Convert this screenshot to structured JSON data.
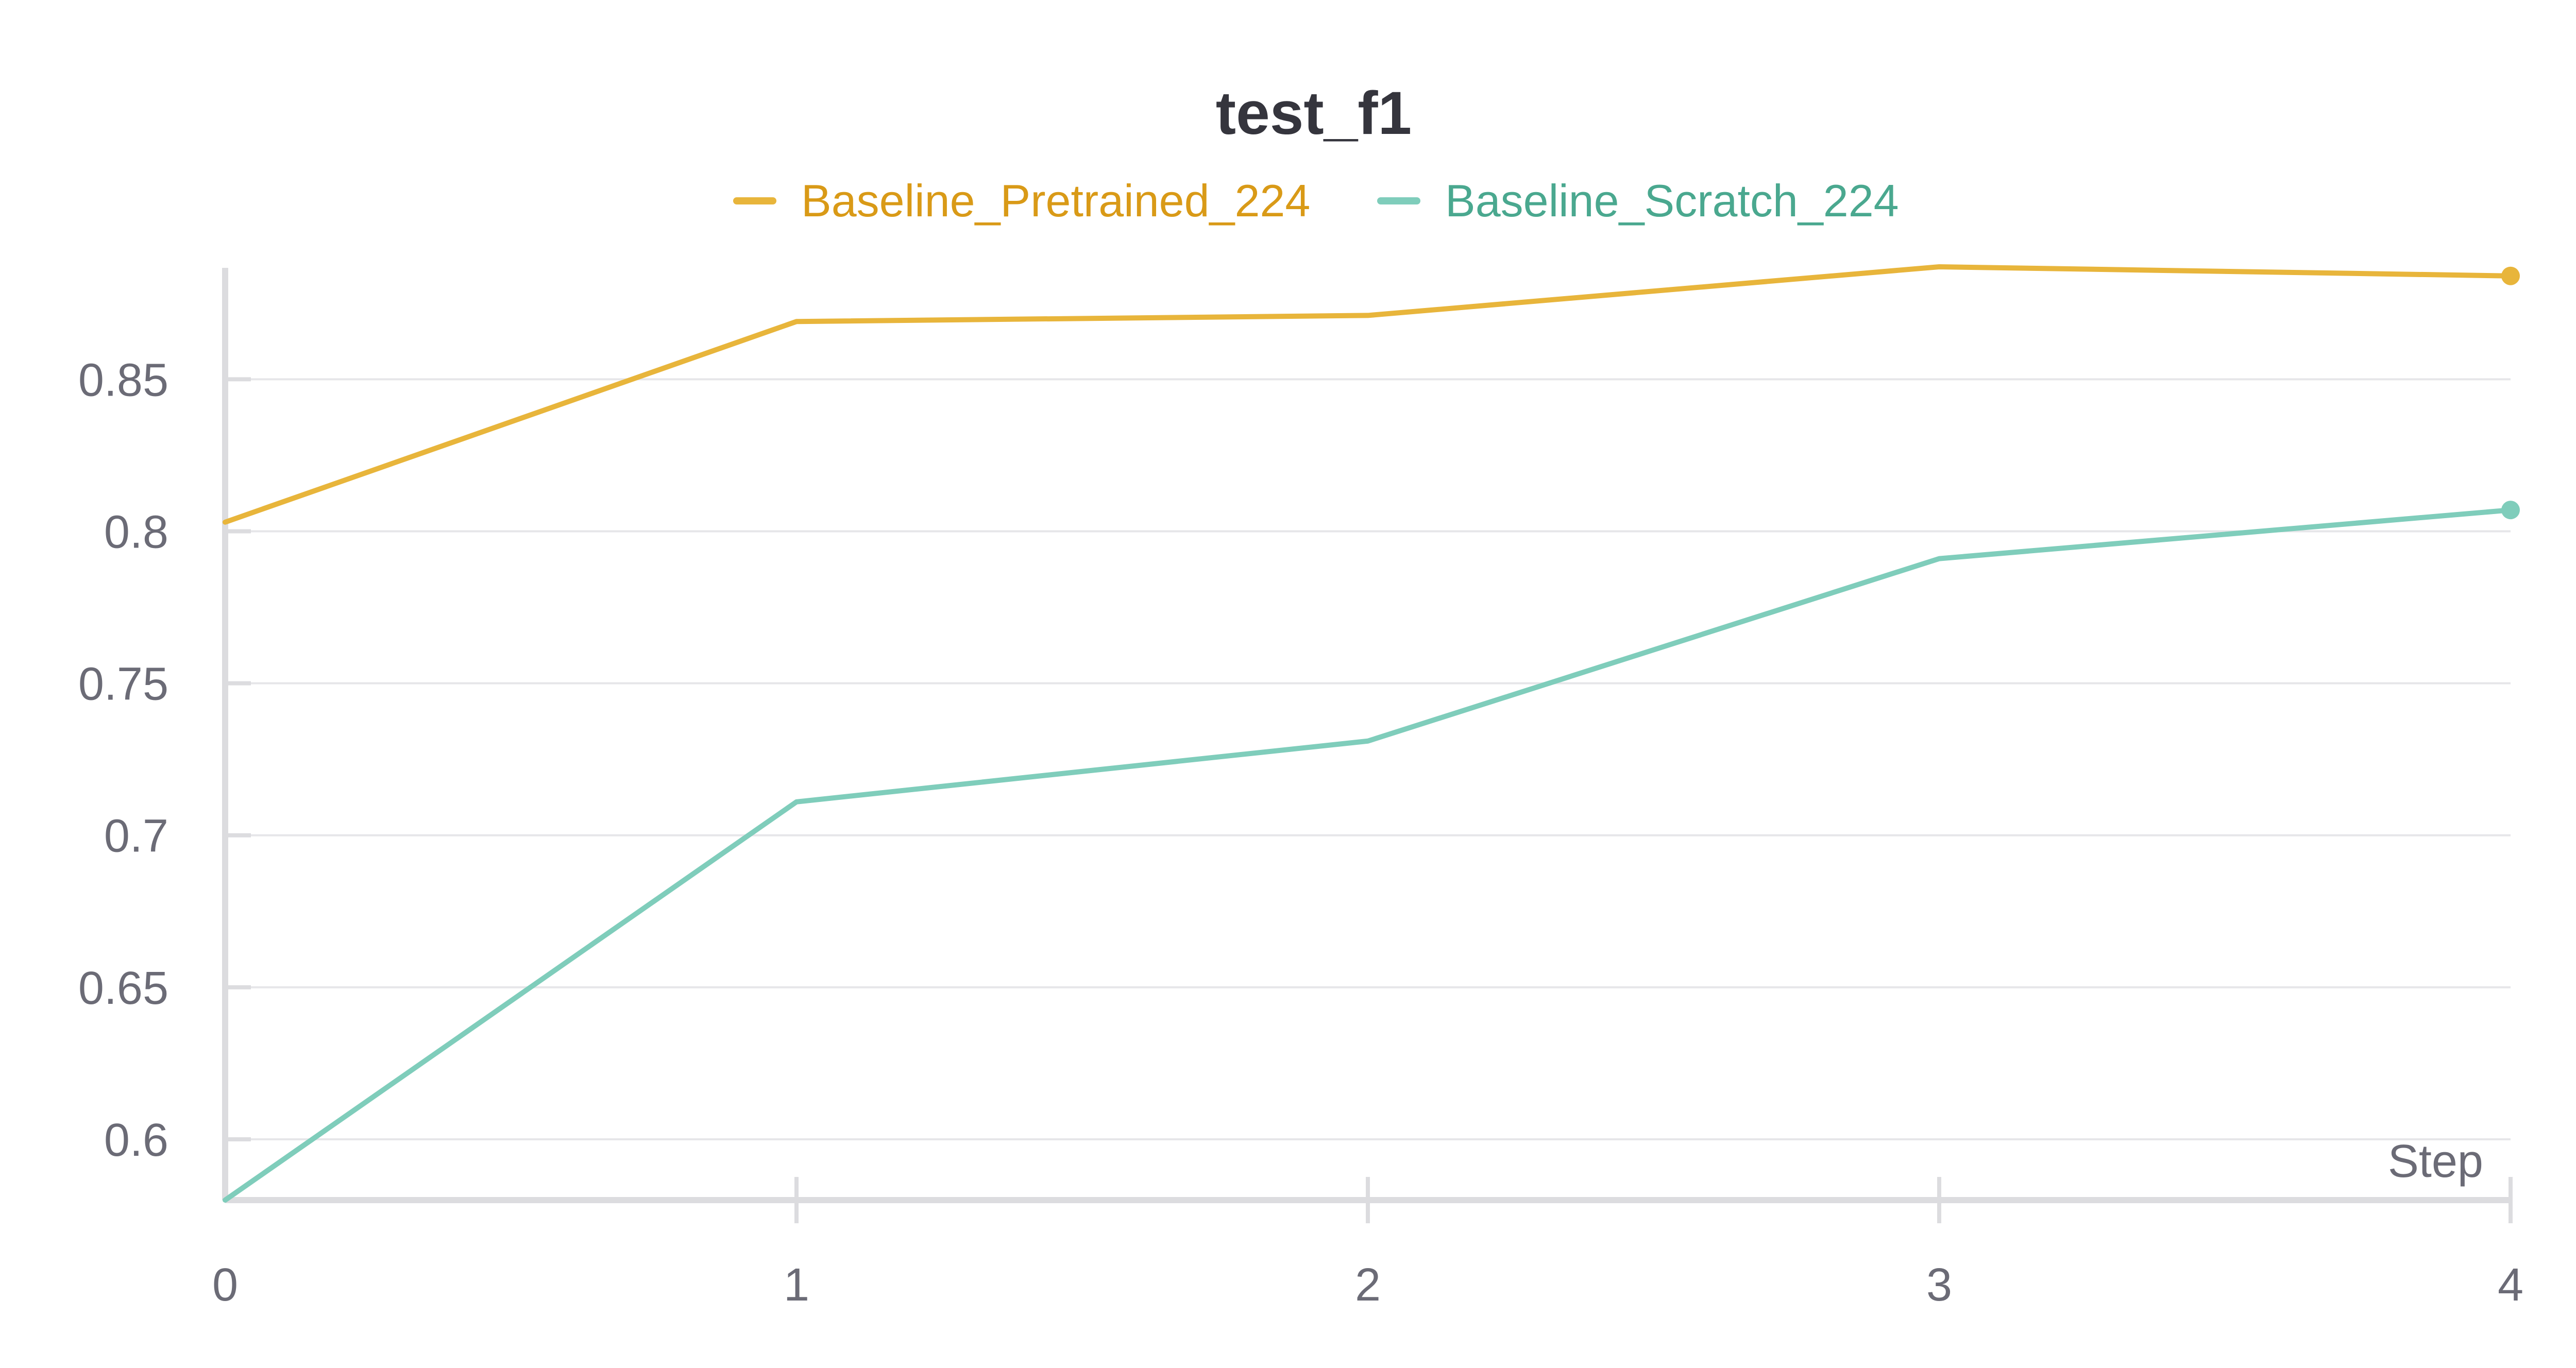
{
  "chart_data": {
    "type": "line",
    "title": "test_f1",
    "xlabel": "Step",
    "ylabel": "",
    "x": [
      0,
      1,
      2,
      3,
      4
    ],
    "xlim": [
      0,
      4
    ],
    "ylim": [
      0.58,
      0.887
    ],
    "yticks": [
      0.6,
      0.65,
      0.7,
      0.75,
      0.8,
      0.85
    ],
    "ytick_labels": [
      "0.6",
      "0.65",
      "0.7",
      "0.75",
      "0.8",
      "0.85"
    ],
    "xtick_labels": [
      "0",
      "1",
      "2",
      "3",
      "4"
    ],
    "grid": true,
    "legend_position": "top-center",
    "series": [
      {
        "name": "Baseline_Pretrained_224",
        "color": "#e8b53b",
        "label_color": "#d99a17",
        "values": [
          0.803,
          0.869,
          0.871,
          0.887,
          0.884
        ]
      },
      {
        "name": "Baseline_Scratch_224",
        "color": "#7fcdbb",
        "label_color": "#4aa88f",
        "values": [
          0.58,
          0.711,
          0.731,
          0.791,
          0.807
        ]
      }
    ]
  }
}
